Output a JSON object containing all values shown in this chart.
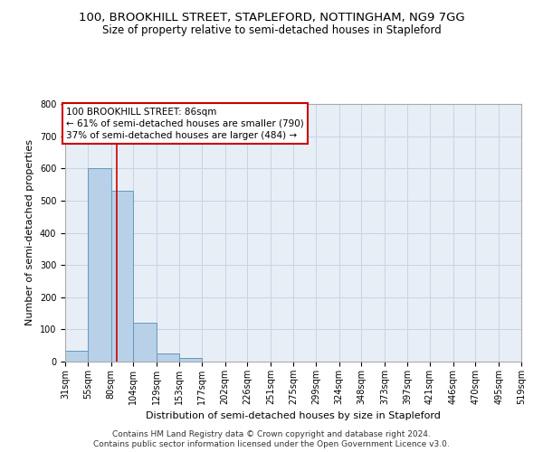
{
  "title": "100, BROOKHILL STREET, STAPLEFORD, NOTTINGHAM, NG9 7GG",
  "subtitle": "Size of property relative to semi-detached houses in Stapleford",
  "xlabel": "Distribution of semi-detached houses by size in Stapleford",
  "ylabel": "Number of semi-detached properties",
  "bar_values": [
    33,
    600,
    530,
    120,
    25,
    10,
    0,
    0,
    0,
    0,
    0,
    0,
    0,
    0,
    0,
    0,
    0,
    0,
    0,
    0
  ],
  "bin_edges": [
    31,
    55,
    80,
    104,
    129,
    153,
    177,
    202,
    226,
    251,
    275,
    299,
    324,
    348,
    373,
    397,
    421,
    446,
    470,
    495,
    519
  ],
  "bar_color": "#b8d0e8",
  "bar_edge_color": "#6699bb",
  "bar_linewidth": 0.7,
  "grid_color": "#c8d4e4",
  "bg_color": "#e8eef6",
  "red_line_x": 86,
  "red_line_color": "#cc0000",
  "annotation_text": "100 BROOKHILL STREET: 86sqm\n← 61% of semi-detached houses are smaller (790)\n37% of semi-detached houses are larger (484) →",
  "annotation_box_color": "#cc0000",
  "ylim": [
    0,
    800
  ],
  "yticks": [
    0,
    100,
    200,
    300,
    400,
    500,
    600,
    700,
    800
  ],
  "footer_line1": "Contains HM Land Registry data © Crown copyright and database right 2024.",
  "footer_line2": "Contains public sector information licensed under the Open Government Licence v3.0.",
  "title_fontsize": 9.5,
  "subtitle_fontsize": 8.5,
  "xlabel_fontsize": 8,
  "ylabel_fontsize": 8,
  "tick_fontsize": 7,
  "annotation_fontsize": 7.5,
  "footer_fontsize": 6.5
}
